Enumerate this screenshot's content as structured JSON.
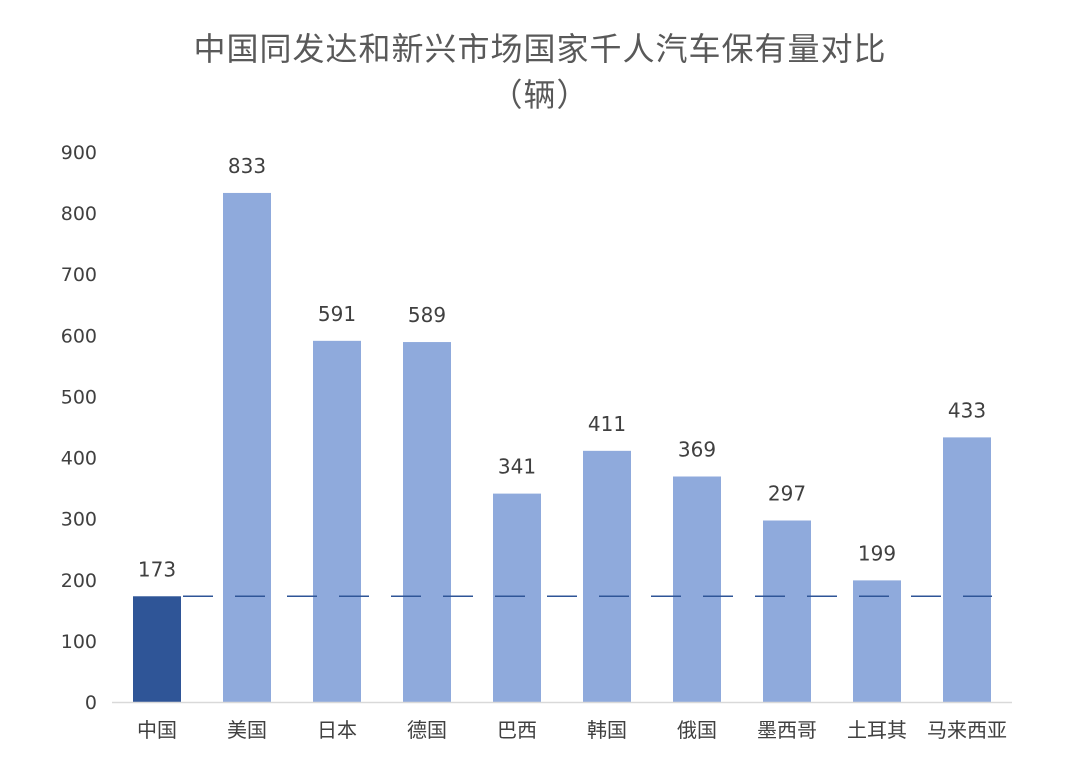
{
  "chart_data": {
    "type": "bar",
    "title": "中国同发达和新兴市场国家千人汽车保有量对比",
    "subtitle": "（辆）",
    "categories": [
      "中国",
      "美国",
      "日本",
      "德国",
      "巴西",
      "韩国",
      "俄国",
      "墨西哥",
      "土耳其",
      "马来西亚"
    ],
    "values": [
      173,
      833,
      591,
      589,
      341,
      411,
      369,
      297,
      199,
      433
    ],
    "value_labels": [
      "173",
      "833",
      "591",
      "589",
      "341",
      "411",
      "369",
      "297",
      "199",
      "433"
    ],
    "ylim": [
      0,
      900
    ],
    "yticks": [
      0,
      100,
      200,
      300,
      400,
      500,
      600,
      700,
      800,
      900
    ],
    "ytick_labels": [
      "0",
      "100",
      "200",
      "300",
      "400",
      "500",
      "600",
      "700",
      "800",
      "900"
    ],
    "reference_line": {
      "value": 173,
      "style": "dashed"
    },
    "grid": false,
    "legend": "none",
    "colors": {
      "highlight_bar": "#2F5597",
      "bar": "#8FAADC",
      "reference_line": "#2F5597",
      "axis": "#D9D9D9"
    },
    "highlight_index": 0
  }
}
